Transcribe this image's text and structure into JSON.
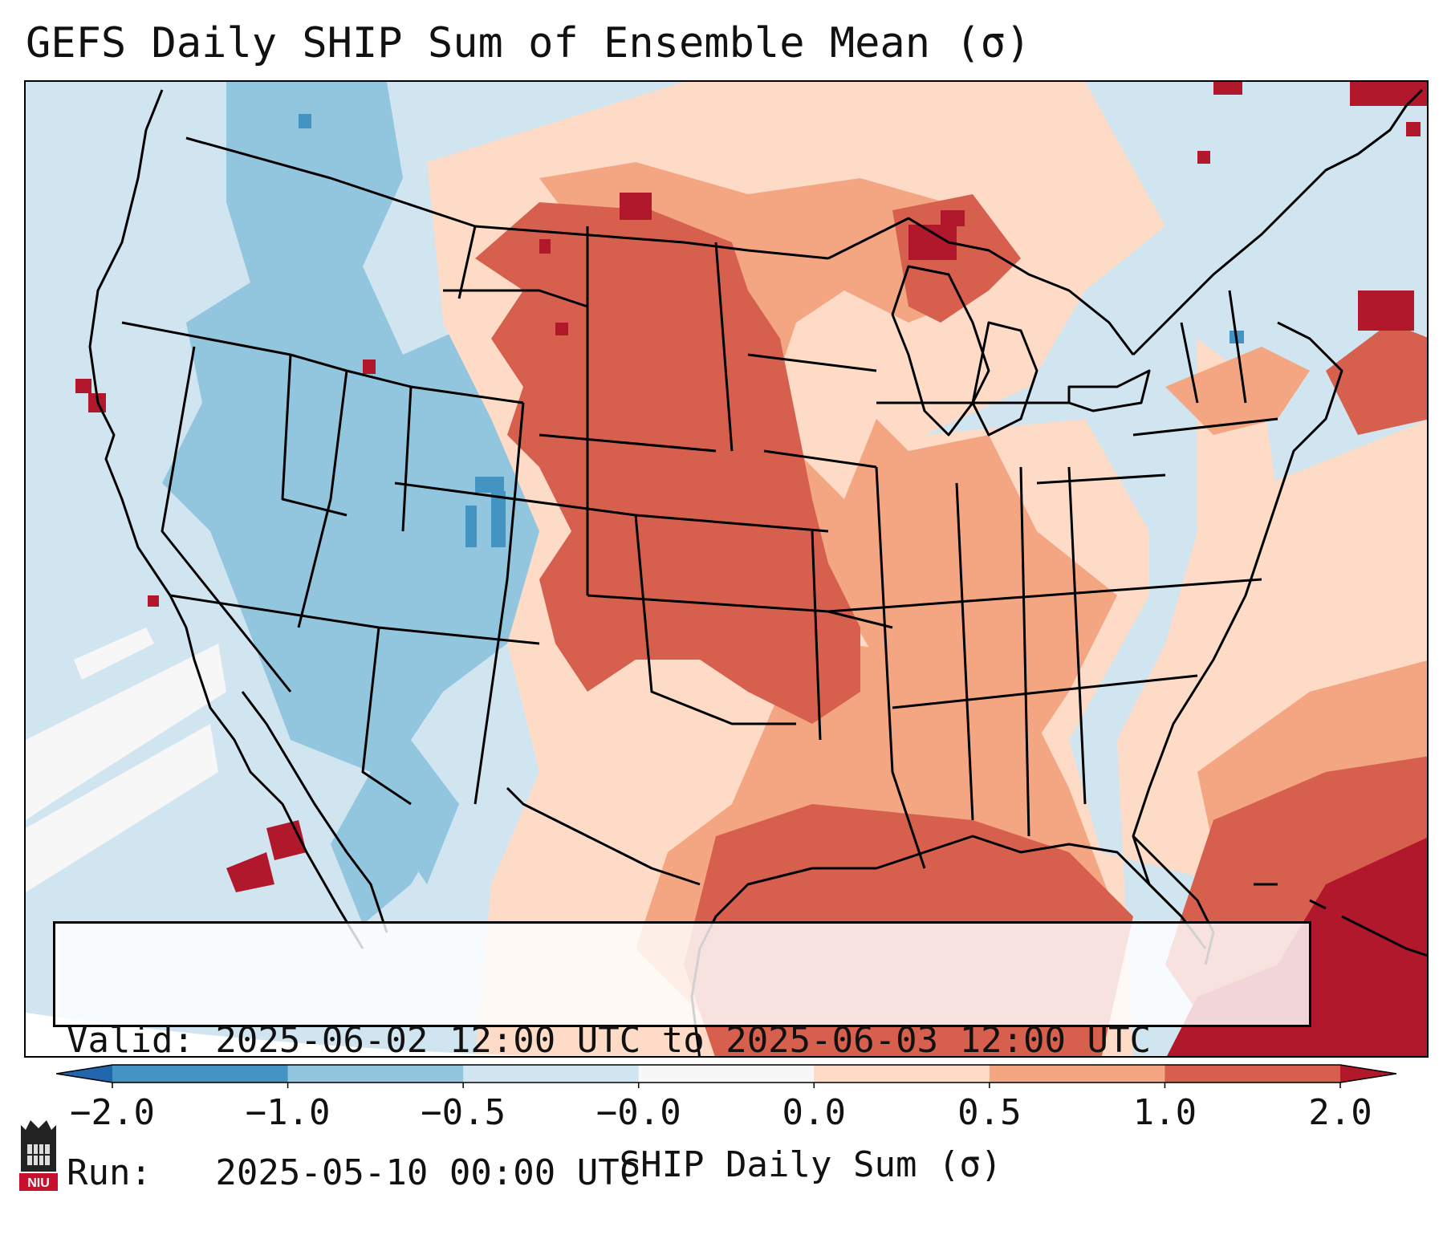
{
  "title": "GEFS Daily SHIP Sum of Ensemble Mean (σ)",
  "map": {
    "projection": "Lambert conformal, contiguous United States",
    "field": "SHIP daily sum ensemble mean",
    "land_outline_color": "#000000",
    "ocean_background_color": "#d1e4ef"
  },
  "info_box": {
    "valid_line": "Valid: 2025-06-02 12:00 UTC to 2025-06-03 12:00 UTC",
    "run_line": "Run:   2025-05-10 00:00 UTC"
  },
  "colorbar": {
    "label": "SHIP Daily Sum (σ)",
    "ticks": [
      "−2.0",
      "−1.0",
      "−0.5",
      "−0.0",
      "0.0",
      "0.5",
      "1.0",
      "2.0"
    ],
    "colors": [
      "#2166ac",
      "#4393c3",
      "#92c5de",
      "#d1e5f0",
      "#f7f7f7",
      "#fddbc7",
      "#f4a582",
      "#d6604d",
      "#b2182b"
    ],
    "extend": "both"
  },
  "logo": {
    "text": "NIU",
    "color": "#c8102e"
  }
}
